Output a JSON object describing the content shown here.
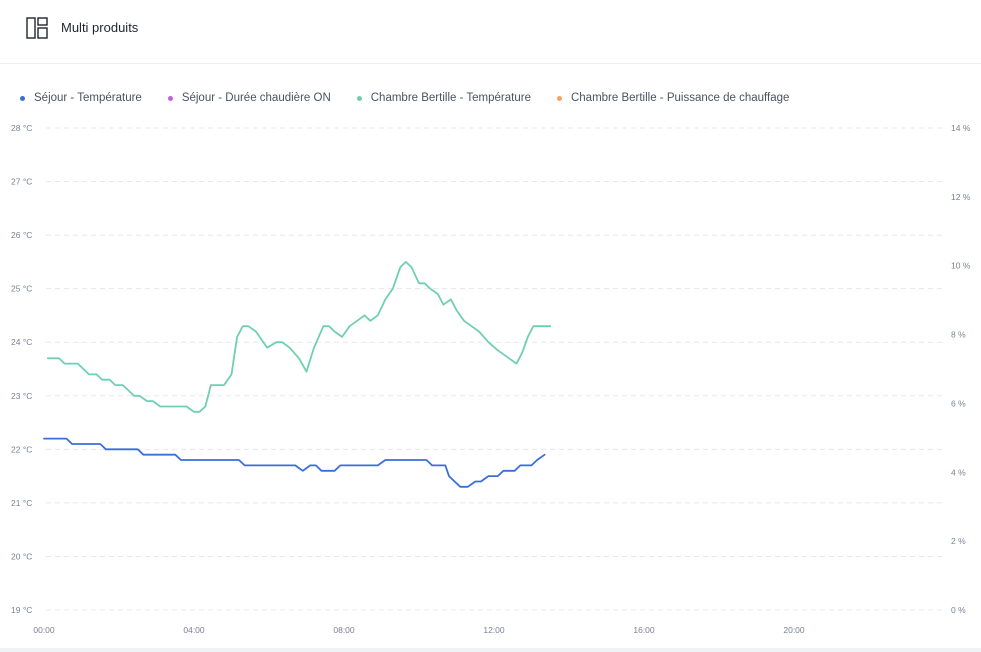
{
  "header": {
    "title": "Multi produits",
    "icon": "layout-icon"
  },
  "legend": [
    {
      "label": "Séjour - Température",
      "color": "#3b6fd8"
    },
    {
      "label": "Séjour - Durée chaudière ON",
      "color": "#c25ee8"
    },
    {
      "label": "Chambre Bertille - Température",
      "color": "#6fcfb2"
    },
    {
      "label": "Chambre Bertille - Puissance de chauffage",
      "color": "#f5a068"
    }
  ],
  "chart_data": {
    "type": "line",
    "x_unit": "hour of day",
    "xlim": [
      0,
      24
    ],
    "x_ticks": [
      "00:00",
      "04:00",
      "08:00",
      "12:00",
      "16:00",
      "20:00"
    ],
    "y_left": {
      "ylim": [
        19,
        28
      ],
      "ticks": [
        "19 °C",
        "20 °C",
        "21 °C",
        "22 °C",
        "23 °C",
        "24 °C",
        "25 °C",
        "26 °C",
        "27 °C",
        "28 °C"
      ]
    },
    "y_right": {
      "ylim": [
        0,
        14
      ],
      "ticks": [
        "0 %",
        "2 %",
        "4 %",
        "6 %",
        "8 %",
        "10 %",
        "12 %",
        "14 %"
      ]
    },
    "grid": true,
    "legend_position": "top-left",
    "series": [
      {
        "name": "Séjour - Température",
        "axis": "left",
        "color": "#3b6fd8",
        "x": [
          0.0,
          0.6,
          0.75,
          1.5,
          1.65,
          2.5,
          2.65,
          3.5,
          3.65,
          5.2,
          5.35,
          6.7,
          6.8,
          6.9,
          7.0,
          7.1,
          7.25,
          7.4,
          7.75,
          7.9,
          8.05,
          8.2,
          8.9,
          9.1,
          10.2,
          10.35,
          10.7,
          10.8,
          10.95,
          11.1,
          11.3,
          11.5,
          11.65,
          11.85,
          12.1,
          12.25,
          12.55,
          12.7,
          13.0,
          13.15,
          13.35
        ],
        "y": [
          22.2,
          22.2,
          22.1,
          22.1,
          22.0,
          22.0,
          21.9,
          21.9,
          21.8,
          21.8,
          21.7,
          21.7,
          21.65,
          21.6,
          21.65,
          21.7,
          21.7,
          21.6,
          21.6,
          21.7,
          21.7,
          21.7,
          21.7,
          21.8,
          21.8,
          21.7,
          21.7,
          21.5,
          21.4,
          21.3,
          21.3,
          21.4,
          21.4,
          21.5,
          21.5,
          21.6,
          21.6,
          21.7,
          21.7,
          21.8,
          21.9
        ]
      },
      {
        "name": "Chambre Bertille - Température",
        "axis": "left",
        "color": "#6fcfb2",
        "x": [
          0.1,
          0.4,
          0.55,
          0.9,
          1.2,
          1.4,
          1.55,
          1.75,
          1.9,
          2.1,
          2.25,
          2.4,
          2.55,
          2.75,
          2.9,
          3.1,
          3.25,
          3.5,
          3.8,
          4.0,
          4.15,
          4.3,
          4.45,
          4.6,
          4.8,
          5.0,
          5.15,
          5.3,
          5.45,
          5.65,
          5.95,
          6.2,
          6.35,
          6.55,
          6.8,
          7.0,
          7.2,
          7.45,
          7.6,
          7.75,
          7.95,
          8.15,
          8.35,
          8.55,
          8.7,
          8.9,
          9.1,
          9.3,
          9.5,
          9.65,
          9.8,
          10.0,
          10.15,
          10.3,
          10.5,
          10.65,
          10.85,
          11.0,
          11.2,
          11.4,
          11.6,
          11.85,
          12.1,
          12.4,
          12.6,
          12.75,
          12.9,
          13.05,
          13.15,
          13.25,
          13.5
        ],
        "y": [
          23.7,
          23.7,
          23.6,
          23.6,
          23.4,
          23.4,
          23.3,
          23.3,
          23.2,
          23.2,
          23.1,
          23.0,
          23.0,
          22.9,
          22.9,
          22.8,
          22.8,
          22.8,
          22.8,
          22.7,
          22.7,
          22.8,
          23.2,
          23.2,
          23.2,
          23.4,
          24.1,
          24.3,
          24.3,
          24.2,
          23.9,
          24.0,
          24.0,
          23.9,
          23.7,
          23.45,
          23.9,
          24.3,
          24.3,
          24.2,
          24.1,
          24.3,
          24.4,
          24.5,
          24.4,
          24.5,
          24.8,
          25.0,
          25.4,
          25.5,
          25.4,
          25.1,
          25.1,
          25.0,
          24.9,
          24.7,
          24.8,
          24.6,
          24.4,
          24.3,
          24.2,
          24.0,
          23.85,
          23.7,
          23.6,
          23.8,
          24.1,
          24.3,
          24.3,
          24.3,
          24.3
        ]
      }
    ]
  }
}
